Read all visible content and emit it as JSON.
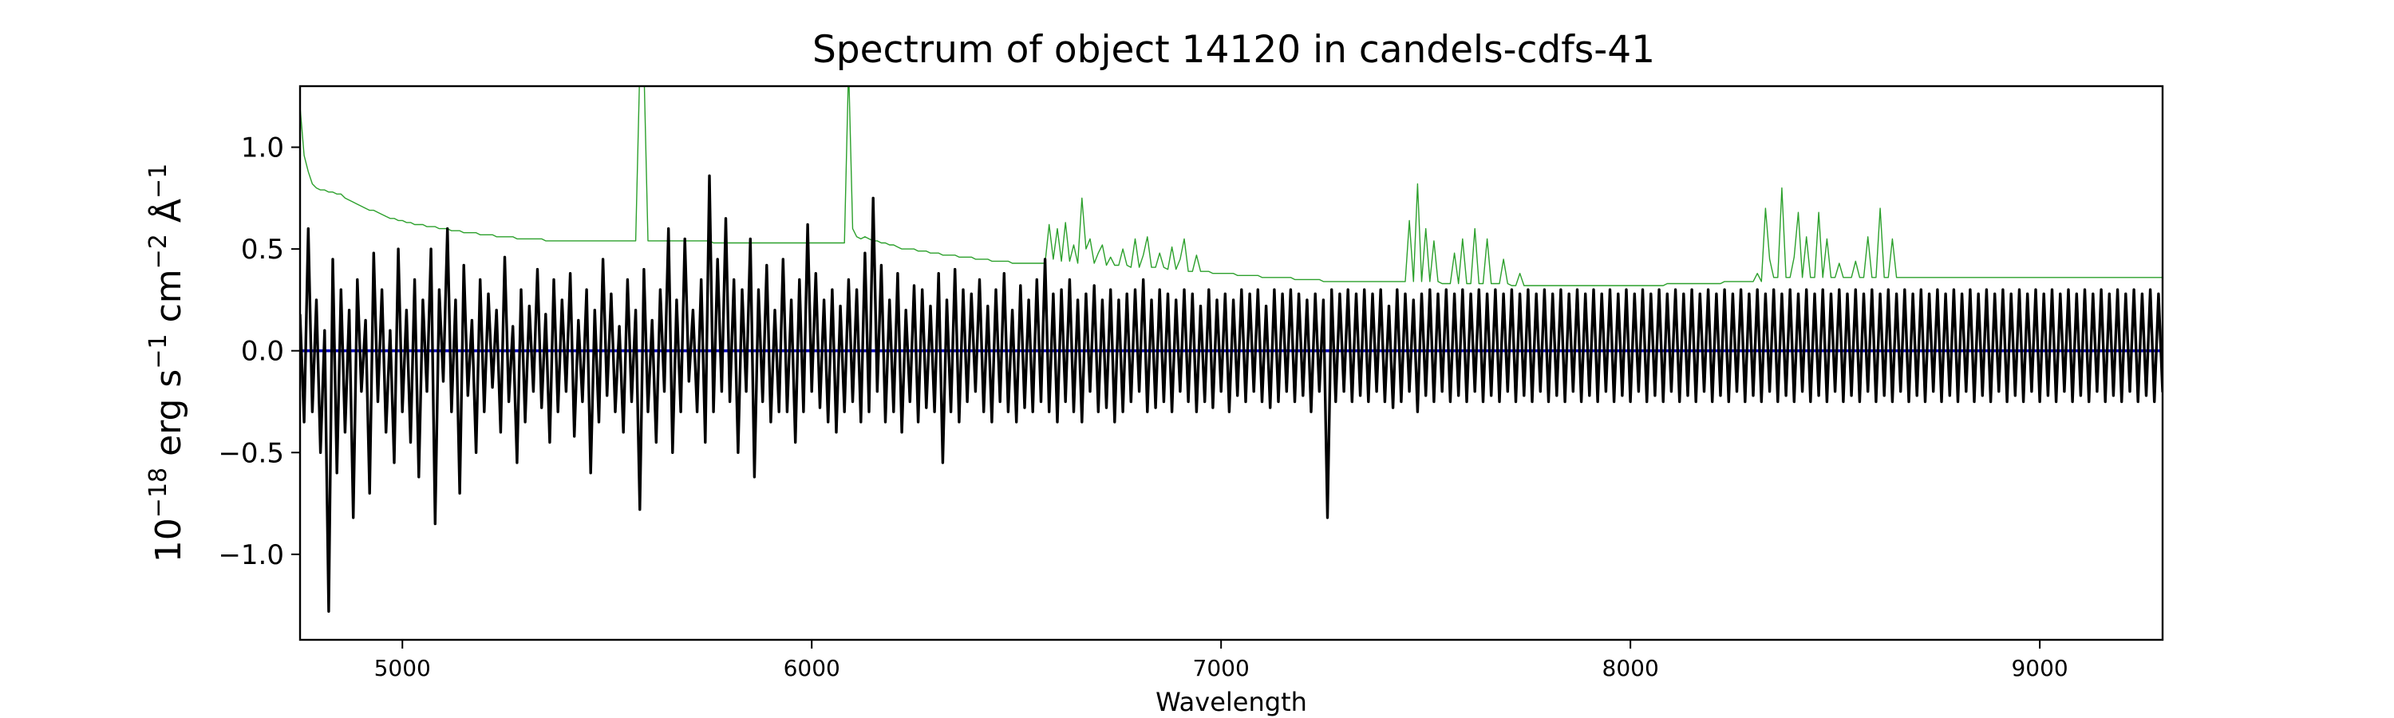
{
  "chart_data": {
    "type": "line",
    "title": "Spectrum of object 14120 in candels-cdfs-41",
    "xlabel": "Wavelength",
    "ylabel": {
      "parts": [
        {
          "t": "10",
          "s": "n"
        },
        {
          "t": "−18",
          "s": "sup"
        },
        {
          "t": " erg s",
          "s": "n"
        },
        {
          "t": "−1",
          "s": "sup"
        },
        {
          "t": " cm",
          "s": "n"
        },
        {
          "t": "−2",
          "s": "sup"
        },
        {
          "t": " Å",
          "s": "n"
        },
        {
          "t": "−1",
          "s": "sup"
        }
      ]
    },
    "xlim": [
      4750,
      9300
    ],
    "ylim": [
      -1.42,
      1.3
    ],
    "x_ticks": [
      5000,
      6000,
      7000,
      8000,
      9000
    ],
    "x_tick_labels": [
      "5000",
      "6000",
      "7000",
      "8000",
      "9000"
    ],
    "y_ticks": [
      -1.0,
      -0.5,
      0.0,
      0.5,
      1.0
    ],
    "y_tick_labels": [
      "−1.0",
      "−0.5",
      "0.0",
      "0.5",
      "1.0"
    ],
    "grid": false,
    "legend": "none",
    "series": [
      {
        "role": "error",
        "color": "#2ca02c",
        "x_start": 4750,
        "x_step": 10,
        "values": [
          1.2,
          0.96,
          0.88,
          0.82,
          0.8,
          0.79,
          0.79,
          0.78,
          0.78,
          0.77,
          0.77,
          0.75,
          0.74,
          0.73,
          0.72,
          0.71,
          0.7,
          0.69,
          0.69,
          0.68,
          0.67,
          0.66,
          0.65,
          0.65,
          0.64,
          0.64,
          0.63,
          0.63,
          0.62,
          0.62,
          0.62,
          0.61,
          0.61,
          0.61,
          0.6,
          0.6,
          0.6,
          0.59,
          0.59,
          0.59,
          0.58,
          0.58,
          0.58,
          0.58,
          0.57,
          0.57,
          0.57,
          0.57,
          0.56,
          0.56,
          0.56,
          0.56,
          0.56,
          0.55,
          0.55,
          0.55,
          0.55,
          0.55,
          0.55,
          0.55,
          0.54,
          0.54,
          0.54,
          0.54,
          0.54,
          0.54,
          0.54,
          0.54,
          0.54,
          0.54,
          0.54,
          0.54,
          0.54,
          0.54,
          0.54,
          0.54,
          0.54,
          0.54,
          0.54,
          0.54,
          0.54,
          0.54,
          0.54,
          1.4,
          1.4,
          0.54,
          0.54,
          0.54,
          0.54,
          0.54,
          0.54,
          0.54,
          0.54,
          0.54,
          0.54,
          0.54,
          0.54,
          0.54,
          0.54,
          0.54,
          0.54,
          0.53,
          0.53,
          0.53,
          0.53,
          0.53,
          0.53,
          0.53,
          0.53,
          0.53,
          0.53,
          0.53,
          0.53,
          0.53,
          0.53,
          0.53,
          0.53,
          0.53,
          0.53,
          0.53,
          0.53,
          0.53,
          0.53,
          0.53,
          0.53,
          0.53,
          0.53,
          0.53,
          0.53,
          0.53,
          0.53,
          0.53,
          0.53,
          0.53,
          1.4,
          0.6,
          0.56,
          0.55,
          0.56,
          0.55,
          0.54,
          0.54,
          0.53,
          0.53,
          0.52,
          0.52,
          0.51,
          0.5,
          0.5,
          0.5,
          0.5,
          0.49,
          0.49,
          0.49,
          0.48,
          0.48,
          0.48,
          0.47,
          0.47,
          0.47,
          0.47,
          0.46,
          0.46,
          0.46,
          0.46,
          0.45,
          0.45,
          0.45,
          0.45,
          0.44,
          0.44,
          0.44,
          0.44,
          0.44,
          0.43,
          0.43,
          0.43,
          0.43,
          0.43,
          0.43,
          0.43,
          0.43,
          0.43,
          0.62,
          0.45,
          0.6,
          0.44,
          0.63,
          0.44,
          0.52,
          0.43,
          0.75,
          0.5,
          0.55,
          0.43,
          0.48,
          0.52,
          0.42,
          0.46,
          0.42,
          0.42,
          0.5,
          0.42,
          0.41,
          0.55,
          0.41,
          0.47,
          0.56,
          0.41,
          0.41,
          0.48,
          0.41,
          0.4,
          0.51,
          0.4,
          0.45,
          0.55,
          0.39,
          0.39,
          0.47,
          0.39,
          0.39,
          0.39,
          0.38,
          0.38,
          0.38,
          0.38,
          0.38,
          0.38,
          0.37,
          0.37,
          0.37,
          0.37,
          0.37,
          0.37,
          0.36,
          0.36,
          0.36,
          0.36,
          0.36,
          0.36,
          0.36,
          0.36,
          0.35,
          0.35,
          0.35,
          0.35,
          0.35,
          0.35,
          0.35,
          0.34,
          0.34,
          0.34,
          0.34,
          0.34,
          0.34,
          0.34,
          0.34,
          0.34,
          0.34,
          0.34,
          0.34,
          0.34,
          0.34,
          0.34,
          0.34,
          0.34,
          0.34,
          0.34,
          0.34,
          0.34,
          0.64,
          0.34,
          0.82,
          0.34,
          0.6,
          0.34,
          0.54,
          0.34,
          0.33,
          0.33,
          0.33,
          0.48,
          0.33,
          0.55,
          0.33,
          0.33,
          0.6,
          0.33,
          0.33,
          0.55,
          0.33,
          0.33,
          0.33,
          0.45,
          0.33,
          0.32,
          0.32,
          0.38,
          0.32,
          0.32,
          0.32,
          0.32,
          0.32,
          0.32,
          0.32,
          0.32,
          0.32,
          0.32,
          0.32,
          0.32,
          0.32,
          0.32,
          0.32,
          0.32,
          0.32,
          0.32,
          0.32,
          0.32,
          0.32,
          0.32,
          0.32,
          0.32,
          0.32,
          0.32,
          0.32,
          0.32,
          0.32,
          0.32,
          0.32,
          0.32,
          0.32,
          0.32,
          0.32,
          0.33,
          0.33,
          0.33,
          0.33,
          0.33,
          0.33,
          0.33,
          0.33,
          0.33,
          0.33,
          0.33,
          0.33,
          0.33,
          0.33,
          0.34,
          0.34,
          0.34,
          0.34,
          0.34,
          0.34,
          0.34,
          0.34,
          0.38,
          0.34,
          0.7,
          0.45,
          0.36,
          0.36,
          0.8,
          0.36,
          0.36,
          0.46,
          0.68,
          0.36,
          0.56,
          0.36,
          0.36,
          0.68,
          0.36,
          0.55,
          0.36,
          0.36,
          0.43,
          0.36,
          0.36,
          0.36,
          0.44,
          0.36,
          0.36,
          0.56,
          0.36,
          0.36,
          0.7,
          0.36,
          0.36,
          0.55,
          0.36,
          0.36,
          0.36,
          0.36,
          0.36,
          0.36,
          0.36,
          0.36,
          0.36,
          0.36,
          0.36,
          0.36,
          0.36,
          0.36,
          0.36,
          0.36,
          0.36,
          0.36,
          0.36,
          0.36,
          0.36,
          0.36,
          0.36,
          0.36,
          0.36,
          0.36,
          0.36,
          0.36,
          0.36,
          0.36,
          0.36,
          0.36,
          0.36,
          0.36,
          0.36,
          0.36,
          0.36,
          0.36,
          0.36,
          0.36,
          0.36,
          0.36,
          0.36,
          0.36,
          0.36,
          0.36,
          0.36,
          0.36,
          0.36,
          0.36,
          0.36,
          0.36,
          0.36,
          0.36,
          0.36,
          0.36,
          0.36,
          0.36,
          0.36,
          0.36,
          0.36,
          0.36,
          0.36,
          0.36,
          0.36,
          0.36,
          0.36,
          0.36,
          0.36,
          0.36,
          0.36,
          0.36,
          0.36,
          0.36,
          0.36,
          0.36,
          0.36,
          0.36,
          0.36,
          0.36,
          0.36,
          0.36,
          0.36,
          0.36,
          0.36,
          0.36,
          0.36,
          0.36,
          0.36,
          0.36,
          0.36,
          0.36,
          0.36,
          0.36,
          0.36,
          0.36,
          0.36,
          0.36,
          0.36,
          0.36,
          0.36,
          0.36,
          0.36,
          0.36,
          0.36,
          0.36,
          0.36,
          0.36,
          0.36,
          0.36
        ]
      },
      {
        "role": "flux",
        "color": "#000000",
        "x_start": 4750,
        "x_step": 10,
        "values": [
          0.18,
          -0.35,
          0.6,
          -0.3,
          0.25,
          -0.5,
          0.1,
          -1.28,
          0.45,
          -0.6,
          0.3,
          -0.4,
          0.2,
          -0.82,
          0.35,
          -0.2,
          0.15,
          -0.7,
          0.48,
          -0.25,
          0.3,
          -0.4,
          0.1,
          -0.55,
          0.5,
          -0.3,
          0.2,
          -0.45,
          0.35,
          -0.62,
          0.25,
          -0.2,
          0.5,
          -0.85,
          0.3,
          -0.15,
          0.6,
          -0.3,
          0.25,
          -0.7,
          0.42,
          -0.22,
          0.15,
          -0.5,
          0.35,
          -0.3,
          0.28,
          -0.18,
          0.2,
          -0.4,
          0.46,
          -0.25,
          0.12,
          -0.55,
          0.3,
          -0.35,
          0.22,
          -0.2,
          0.4,
          -0.28,
          0.18,
          -0.45,
          0.35,
          -0.3,
          0.25,
          -0.2,
          0.38,
          -0.42,
          0.15,
          -0.25,
          0.3,
          -0.6,
          0.2,
          -0.35,
          0.45,
          -0.22,
          0.28,
          -0.3,
          0.12,
          -0.4,
          0.35,
          -0.25,
          0.2,
          -0.78,
          0.4,
          -0.3,
          0.15,
          -0.45,
          0.3,
          -0.2,
          0.6,
          -0.5,
          0.25,
          -0.3,
          0.55,
          -0.15,
          0.2,
          -0.3,
          0.35,
          -0.45,
          0.86,
          -0.3,
          0.45,
          -0.2,
          0.65,
          -0.25,
          0.35,
          -0.5,
          0.3,
          -0.2,
          0.55,
          -0.62,
          0.3,
          -0.25,
          0.42,
          -0.35,
          0.2,
          -0.3,
          0.45,
          -0.3,
          0.25,
          -0.45,
          0.35,
          -0.3,
          0.62,
          -0.2,
          0.38,
          -0.28,
          0.25,
          -0.35,
          0.3,
          -0.4,
          0.22,
          -0.3,
          0.35,
          -0.25,
          0.3,
          -0.35,
          0.48,
          -0.3,
          0.75,
          -0.2,
          0.42,
          -0.35,
          0.25,
          -0.3,
          0.38,
          -0.4,
          0.2,
          -0.25,
          0.32,
          -0.35,
          0.3,
          -0.28,
          0.22,
          -0.3,
          0.38,
          -0.55,
          0.25,
          -0.3,
          0.4,
          -0.35,
          0.3,
          -0.25,
          0.28,
          -0.2,
          0.35,
          -0.3,
          0.22,
          -0.35,
          0.3,
          -0.25,
          0.38,
          -0.3,
          0.2,
          -0.35,
          0.32,
          -0.28,
          0.25,
          -0.3,
          0.35,
          -0.25,
          0.45,
          -0.3,
          0.28,
          -0.35,
          0.3,
          -0.25,
          0.35,
          -0.3,
          0.25,
          -0.35,
          0.28,
          -0.2,
          0.32,
          -0.3,
          0.25,
          -0.28,
          0.3,
          -0.35,
          0.25,
          -0.3,
          0.28,
          -0.25,
          0.3,
          -0.2,
          0.35,
          -0.3,
          0.25,
          -0.28,
          0.3,
          -0.25,
          0.28,
          -0.3,
          0.25,
          -0.2,
          0.3,
          -0.25,
          0.28,
          -0.3,
          0.22,
          -0.25,
          0.3,
          -0.28,
          0.25,
          -0.2,
          0.28,
          -0.3,
          0.25,
          -0.22,
          0.3,
          -0.25,
          0.28,
          -0.2,
          0.3,
          -0.25,
          0.22,
          -0.28,
          0.3,
          -0.25,
          0.28,
          -0.2,
          0.3,
          -0.25,
          0.28,
          -0.22,
          0.25,
          -0.3,
          0.28,
          -0.2,
          0.25,
          -0.82,
          0.3,
          -0.25,
          0.28,
          -0.2,
          0.3,
          -0.25,
          0.28,
          -0.22,
          0.3,
          -0.25,
          0.28,
          -0.2,
          0.3,
          -0.25,
          0.22,
          -0.28,
          0.3,
          -0.25,
          0.28,
          -0.2,
          0.25,
          -0.3,
          0.28,
          -0.22,
          0.3,
          -0.25,
          0.28,
          -0.2,
          0.3,
          -0.25,
          0.28,
          -0.22,
          0.3,
          -0.25,
          0.28,
          -0.2,
          0.3,
          -0.25,
          0.28,
          -0.22,
          0.3,
          -0.25,
          0.28,
          -0.2,
          0.3,
          -0.25,
          0.28,
          -0.22,
          0.3,
          -0.25,
          0.28,
          -0.2,
          0.3,
          -0.25,
          0.28,
          -0.22,
          0.3,
          -0.25,
          0.28,
          -0.2,
          0.3,
          -0.25,
          0.28,
          -0.22,
          0.3,
          -0.25,
          0.28,
          -0.2,
          0.3,
          -0.25,
          0.28,
          -0.22,
          0.3,
          -0.25,
          0.28,
          -0.2,
          0.3,
          -0.25,
          0.28,
          -0.22,
          0.3,
          -0.25,
          0.28,
          -0.2,
          0.3,
          -0.25,
          0.28,
          -0.22,
          0.3,
          -0.25,
          0.28,
          -0.2,
          0.3,
          -0.25,
          0.28,
          -0.22,
          0.3,
          -0.25,
          0.28,
          -0.2,
          0.3,
          -0.25,
          0.28,
          -0.22,
          0.3,
          -0.25,
          0.28,
          -0.2,
          0.3,
          -0.25,
          0.28,
          -0.22,
          0.3,
          -0.25,
          0.28,
          -0.2,
          0.3,
          -0.25,
          0.28,
          -0.22,
          0.3,
          -0.25,
          0.28,
          -0.2,
          0.3,
          -0.25,
          0.28,
          -0.22,
          0.3,
          -0.25,
          0.28,
          -0.2,
          0.3,
          -0.25,
          0.28,
          -0.22,
          0.3,
          -0.25,
          0.28,
          -0.2,
          0.3,
          -0.25,
          0.28,
          -0.22,
          0.3,
          -0.25,
          0.28,
          -0.2,
          0.3,
          -0.25,
          0.28,
          -0.22,
          0.3,
          -0.25,
          0.28,
          -0.2,
          0.3,
          -0.25,
          0.28,
          -0.22,
          0.3,
          -0.25,
          0.28,
          -0.2,
          0.3,
          -0.25,
          0.28,
          -0.22,
          0.3,
          -0.25,
          0.28,
          -0.2,
          0.3,
          -0.25,
          0.28,
          -0.22,
          0.3,
          -0.25,
          0.28,
          -0.2,
          0.3,
          -0.25,
          0.28,
          -0.22,
          0.3,
          -0.25,
          0.28,
          -0.2,
          0.3,
          -0.25,
          0.28,
          -0.22,
          0.3,
          -0.25,
          0.28,
          -0.2,
          0.3,
          -0.25,
          0.28,
          -0.22,
          0.3,
          -0.25,
          0.28,
          -0.2,
          0.3,
          -0.25,
          0.28,
          -0.22,
          0.3,
          -0.25,
          0.28,
          -0.2,
          0.3,
          -0.25,
          0.28,
          -0.22,
          0.3,
          -0.25,
          0.28,
          -0.2,
          0.3,
          -0.25,
          0.28,
          -0.22,
          0.3,
          -0.25,
          0.28,
          -0.2,
          0.3,
          -0.25,
          0.28,
          -0.22,
          0.3,
          -0.25,
          0.28,
          -0.2,
          0.3,
          -0.25,
          0.28,
          -0.22,
          0.3,
          -0.25,
          0.28,
          -0.2,
          0.3,
          -0.25,
          0.28,
          -0.22,
          0.3,
          -0.25,
          0.28,
          -0.2,
          0.3,
          -0.25,
          0.28,
          -0.22,
          0.3,
          -0.25,
          0.28,
          -0.2,
          0.3,
          -0.25,
          0.28,
          -0.22,
          0.3,
          -0.25
        ]
      },
      {
        "role": "model",
        "color": "#0000bb",
        "x": [
          4750,
          9300
        ],
        "values": [
          0.0,
          0.0
        ]
      }
    ]
  }
}
